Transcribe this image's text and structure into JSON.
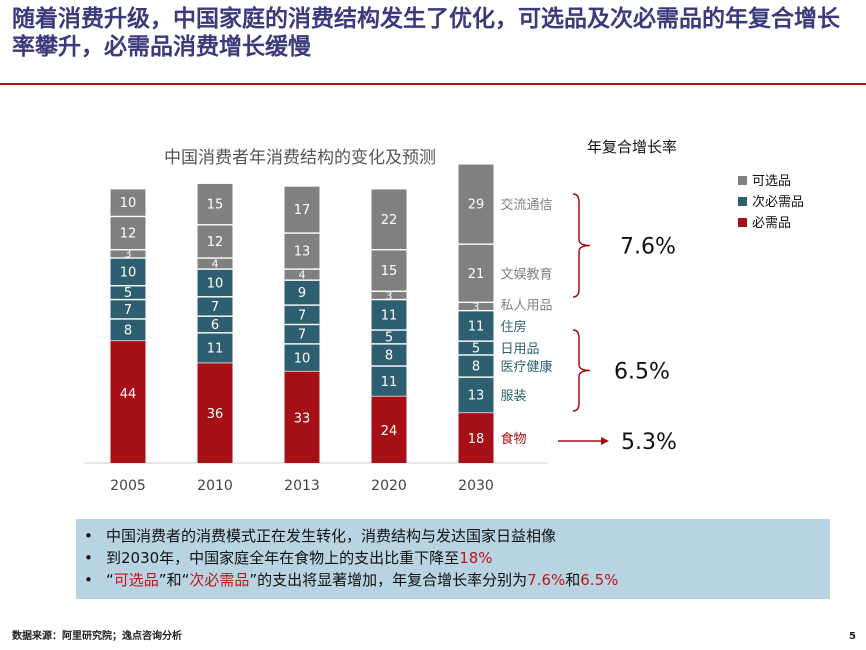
{
  "slide": {
    "title": "随着消费升级，中国家庭的消费结构发生了优化，可选品及次必需品的年复合增长率攀升，必需品消费增长缓慢",
    "source": "数据来源：阿里研究院；逸点咨询分析",
    "page_number": "5"
  },
  "bullets": [
    {
      "parts": [
        {
          "text": "中国消费者的消费模式正在发生转化，消费结构与发达国家日益相像",
          "highlight": false
        }
      ]
    },
    {
      "parts": [
        {
          "text": "到2030年，中国家庭全年在食物上的支出比重下降至",
          "highlight": false
        },
        {
          "text": "18%",
          "highlight": true
        }
      ]
    },
    {
      "parts": [
        {
          "text": "“",
          "highlight": false
        },
        {
          "text": "可选品",
          "highlight": true
        },
        {
          "text": "”和“",
          "highlight": false
        },
        {
          "text": "次必需品",
          "highlight": true
        },
        {
          "text": "”的支出将显著增加，年复合增长率分别为",
          "highlight": false
        },
        {
          "text": "7.6%",
          "highlight": true
        },
        {
          "text": "和",
          "highlight": false
        },
        {
          "text": "6.5%",
          "highlight": true
        }
      ]
    }
  ],
  "colors": {
    "discretionary": "#808080",
    "semi_essential": "#2e5f70",
    "essential": "#a50f15",
    "bullet_highlight": "#c0141b",
    "title": "#3a3a7c",
    "bullet_box": "#b8d4e2"
  },
  "chart_data": {
    "type": "bar",
    "stacked": true,
    "title": "中国消费者年消费结构的变化及预测",
    "categories": [
      "2005",
      "2010",
      "2013",
      "2020",
      "2030"
    ],
    "ylim": [
      0,
      100
    ],
    "grid": false,
    "series": [
      {
        "name": "食物",
        "group": "必需品",
        "values": [
          44,
          36,
          33,
          24,
          18
        ]
      },
      {
        "name": "服装",
        "group": "次必需品",
        "values": [
          8,
          11,
          10,
          11,
          13
        ]
      },
      {
        "name": "医疗健康",
        "group": "次必需品",
        "values": [
          7,
          6,
          7,
          8,
          8
        ]
      },
      {
        "name": "日用品",
        "group": "次必需品",
        "values": [
          5,
          7,
          7,
          5,
          5
        ]
      },
      {
        "name": "住房",
        "group": "次必需品",
        "values": [
          10,
          10,
          9,
          11,
          11
        ]
      },
      {
        "name": "私人用品",
        "group": "可选品",
        "values": [
          3,
          4,
          4,
          3,
          3
        ]
      },
      {
        "name": "文娱教育",
        "group": "可选品",
        "values": [
          12,
          12,
          13,
          15,
          21
        ]
      },
      {
        "name": "交流通信",
        "group": "可选品",
        "values": [
          10,
          15,
          17,
          22,
          29
        ]
      }
    ],
    "legend": {
      "placement": "top-right",
      "entries": [
        {
          "name": "可选品",
          "color": "#808080"
        },
        {
          "name": "次必需品",
          "color": "#2e5f70"
        },
        {
          "name": "必需品",
          "color": "#a50f15"
        }
      ]
    },
    "cagr": {
      "title": "年复合增长率",
      "groups": [
        {
          "group": "可选品",
          "rate": "7.6%"
        },
        {
          "group": "次必需品",
          "rate": "6.5%"
        },
        {
          "group": "必需品",
          "rate": "5.3%"
        }
      ]
    }
  }
}
